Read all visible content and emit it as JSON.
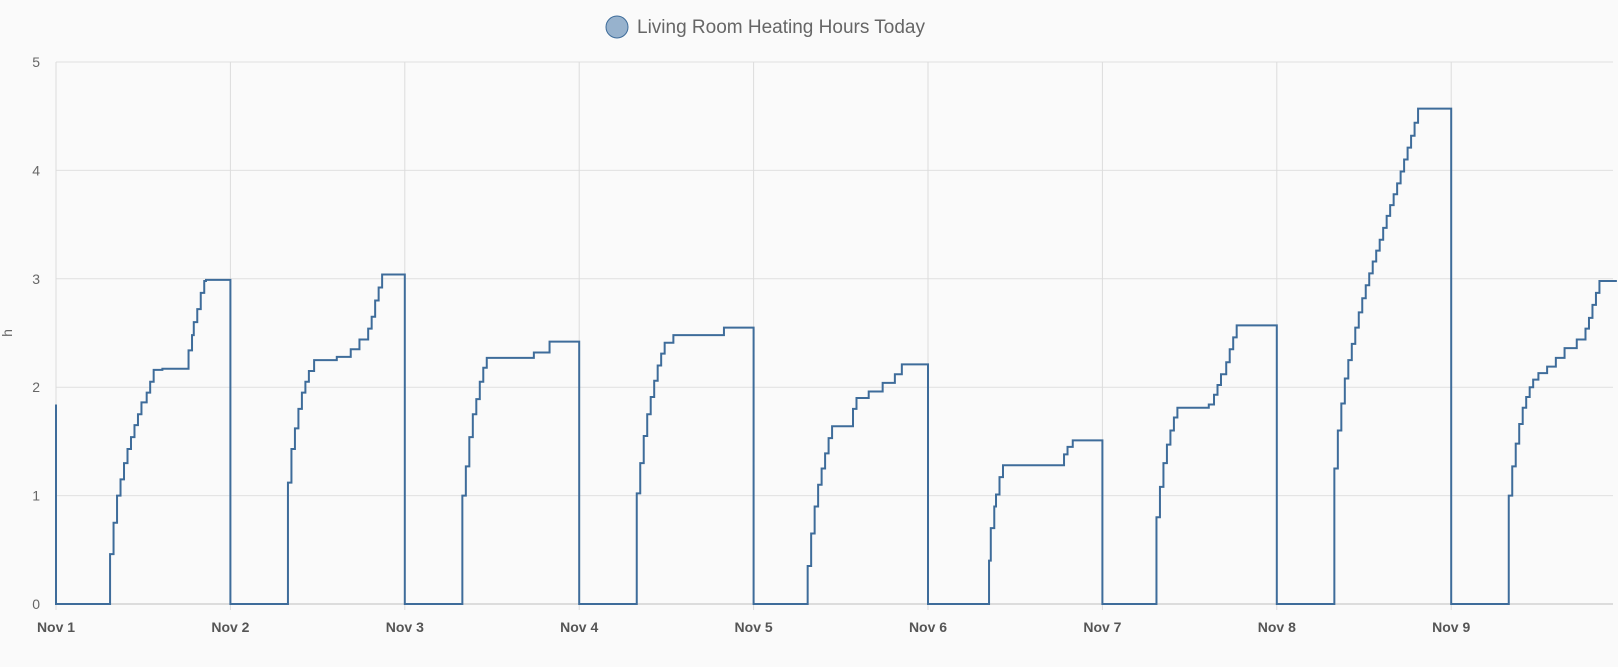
{
  "chart_data": {
    "type": "line",
    "title": "",
    "ylabel": "h",
    "xlabel": "",
    "ylim": [
      0,
      5
    ],
    "xlim": [
      0,
      8.95
    ],
    "yticks": [
      "0",
      "1",
      "2",
      "3",
      "4",
      "5"
    ],
    "xticks": [
      {
        "x": 0,
        "label": "Nov 1"
      },
      {
        "x": 1,
        "label": "Nov 2"
      },
      {
        "x": 2,
        "label": "Nov 3"
      },
      {
        "x": 3,
        "label": "Nov 4"
      },
      {
        "x": 4,
        "label": "Nov 5"
      },
      {
        "x": 5,
        "label": "Nov 6"
      },
      {
        "x": 6,
        "label": "Nov 7"
      },
      {
        "x": 7,
        "label": "Nov 8"
      },
      {
        "x": 8,
        "label": "Nov 9"
      }
    ],
    "grid": true,
    "legend": "top-center",
    "series": [
      {
        "name": "Living Room Heating Hours Today",
        "color": "#3e6c9a",
        "legend_fill": "#97b2cd",
        "step": true,
        "days": [
          {
            "start": 0,
            "pre": 1.84,
            "rise": [
              [
                0.29,
                0
              ],
              [
                0.31,
                0.46
              ],
              [
                0.33,
                0.75
              ],
              [
                0.35,
                1.0
              ],
              [
                0.37,
                1.15
              ],
              [
                0.39,
                1.3
              ],
              [
                0.41,
                1.43
              ],
              [
                0.43,
                1.54
              ],
              [
                0.45,
                1.65
              ],
              [
                0.47,
                1.75
              ],
              [
                0.49,
                1.86
              ],
              [
                0.52,
                1.95
              ],
              [
                0.54,
                2.05
              ],
              [
                0.56,
                2.16
              ],
              [
                0.61,
                2.17
              ],
              [
                0.76,
                2.34
              ],
              [
                0.78,
                2.48
              ],
              [
                0.79,
                2.6
              ],
              [
                0.81,
                2.72
              ],
              [
                0.83,
                2.87
              ],
              [
                0.85,
                2.98
              ],
              [
                0.86,
                2.99
              ]
            ],
            "end": 2.99
          },
          {
            "start": 1,
            "rise": [
              [
                1.29,
                0
              ],
              [
                1.33,
                1.12
              ],
              [
                1.35,
                1.43
              ],
              [
                1.37,
                1.62
              ],
              [
                1.39,
                1.8
              ],
              [
                1.41,
                1.95
              ],
              [
                1.43,
                2.05
              ],
              [
                1.45,
                2.15
              ],
              [
                1.48,
                2.25
              ],
              [
                1.61,
                2.28
              ],
              [
                1.69,
                2.35
              ],
              [
                1.74,
                2.44
              ],
              [
                1.79,
                2.54
              ],
              [
                1.81,
                2.65
              ],
              [
                1.83,
                2.8
              ],
              [
                1.85,
                2.92
              ],
              [
                1.87,
                3.04
              ]
            ],
            "end": 3.04
          },
          {
            "start": 2,
            "rise": [
              [
                2.29,
                0
              ],
              [
                2.33,
                1.0
              ],
              [
                2.35,
                1.27
              ],
              [
                2.37,
                1.54
              ],
              [
                2.39,
                1.75
              ],
              [
                2.41,
                1.89
              ],
              [
                2.43,
                2.05
              ],
              [
                2.45,
                2.18
              ],
              [
                2.47,
                2.27
              ],
              [
                2.74,
                2.32
              ],
              [
                2.83,
                2.42
              ]
            ],
            "end": 2.42
          },
          {
            "start": 3,
            "rise": [
              [
                3.29,
                0
              ],
              [
                3.33,
                1.02
              ],
              [
                3.35,
                1.3
              ],
              [
                3.37,
                1.55
              ],
              [
                3.39,
                1.75
              ],
              [
                3.41,
                1.91
              ],
              [
                3.43,
                2.06
              ],
              [
                3.45,
                2.2
              ],
              [
                3.47,
                2.31
              ],
              [
                3.49,
                2.41
              ],
              [
                3.54,
                2.48
              ],
              [
                3.83,
                2.55
              ]
            ],
            "end": 2.55
          },
          {
            "start": 4,
            "rise": [
              [
                4.29,
                0
              ],
              [
                4.31,
                0.35
              ],
              [
                4.33,
                0.65
              ],
              [
                4.35,
                0.9
              ],
              [
                4.37,
                1.1
              ],
              [
                4.39,
                1.25
              ],
              [
                4.41,
                1.39
              ],
              [
                4.43,
                1.53
              ],
              [
                4.45,
                1.64
              ],
              [
                4.57,
                1.8
              ],
              [
                4.59,
                1.9
              ],
              [
                4.66,
                1.96
              ],
              [
                4.74,
                2.04
              ],
              [
                4.81,
                2.12
              ],
              [
                4.85,
                2.21
              ]
            ],
            "end": 2.21
          },
          {
            "start": 5,
            "rise": [
              [
                5.33,
                0
              ],
              [
                5.35,
                0.4
              ],
              [
                5.36,
                0.7
              ],
              [
                5.38,
                0.9
              ],
              [
                5.39,
                1.01
              ],
              [
                5.41,
                1.17
              ],
              [
                5.43,
                1.28
              ],
              [
                5.78,
                1.38
              ],
              [
                5.8,
                1.45
              ],
              [
                5.83,
                1.51
              ]
            ],
            "end": 1.51
          },
          {
            "start": 6,
            "rise": [
              [
                6.29,
                0
              ],
              [
                6.31,
                0.8
              ],
              [
                6.33,
                1.08
              ],
              [
                6.35,
                1.3
              ],
              [
                6.37,
                1.47
              ],
              [
                6.39,
                1.6
              ],
              [
                6.41,
                1.72
              ],
              [
                6.43,
                1.81
              ],
              [
                6.61,
                1.84
              ],
              [
                6.64,
                1.93
              ],
              [
                6.66,
                2.02
              ],
              [
                6.68,
                2.12
              ],
              [
                6.71,
                2.23
              ],
              [
                6.73,
                2.35
              ],
              [
                6.75,
                2.46
              ],
              [
                6.77,
                2.57
              ]
            ],
            "end": 2.57
          },
          {
            "start": 7,
            "rise": [
              [
                7.29,
                0
              ],
              [
                7.33,
                1.25
              ],
              [
                7.35,
                1.6
              ],
              [
                7.37,
                1.85
              ],
              [
                7.39,
                2.08
              ],
              [
                7.41,
                2.25
              ],
              [
                7.43,
                2.4
              ],
              [
                7.45,
                2.55
              ],
              [
                7.47,
                2.69
              ],
              [
                7.49,
                2.82
              ],
              [
                7.51,
                2.94
              ],
              [
                7.53,
                3.05
              ],
              [
                7.55,
                3.16
              ],
              [
                7.57,
                3.26
              ],
              [
                7.59,
                3.36
              ],
              [
                7.61,
                3.47
              ],
              [
                7.63,
                3.58
              ],
              [
                7.65,
                3.68
              ],
              [
                7.67,
                3.78
              ],
              [
                7.69,
                3.88
              ],
              [
                7.71,
                3.99
              ],
              [
                7.73,
                4.1
              ],
              [
                7.75,
                4.21
              ],
              [
                7.77,
                4.32
              ],
              [
                7.79,
                4.44
              ],
              [
                7.81,
                4.57
              ]
            ],
            "end": 4.57
          },
          {
            "start": 8,
            "rise": [
              [
                8.29,
                0
              ],
              [
                8.33,
                1.0
              ],
              [
                8.35,
                1.27
              ],
              [
                8.37,
                1.48
              ],
              [
                8.39,
                1.66
              ],
              [
                8.41,
                1.81
              ],
              [
                8.43,
                1.91
              ],
              [
                8.45,
                2.0
              ],
              [
                8.47,
                2.07
              ],
              [
                8.5,
                2.13
              ],
              [
                8.55,
                2.19
              ],
              [
                8.6,
                2.27
              ],
              [
                8.65,
                2.36
              ],
              [
                8.72,
                2.44
              ],
              [
                8.77,
                2.54
              ],
              [
                8.79,
                2.64
              ],
              [
                8.81,
                2.76
              ],
              [
                8.83,
                2.87
              ],
              [
                8.85,
                2.98
              ]
            ],
            "end": 2.98
          }
        ]
      }
    ]
  }
}
